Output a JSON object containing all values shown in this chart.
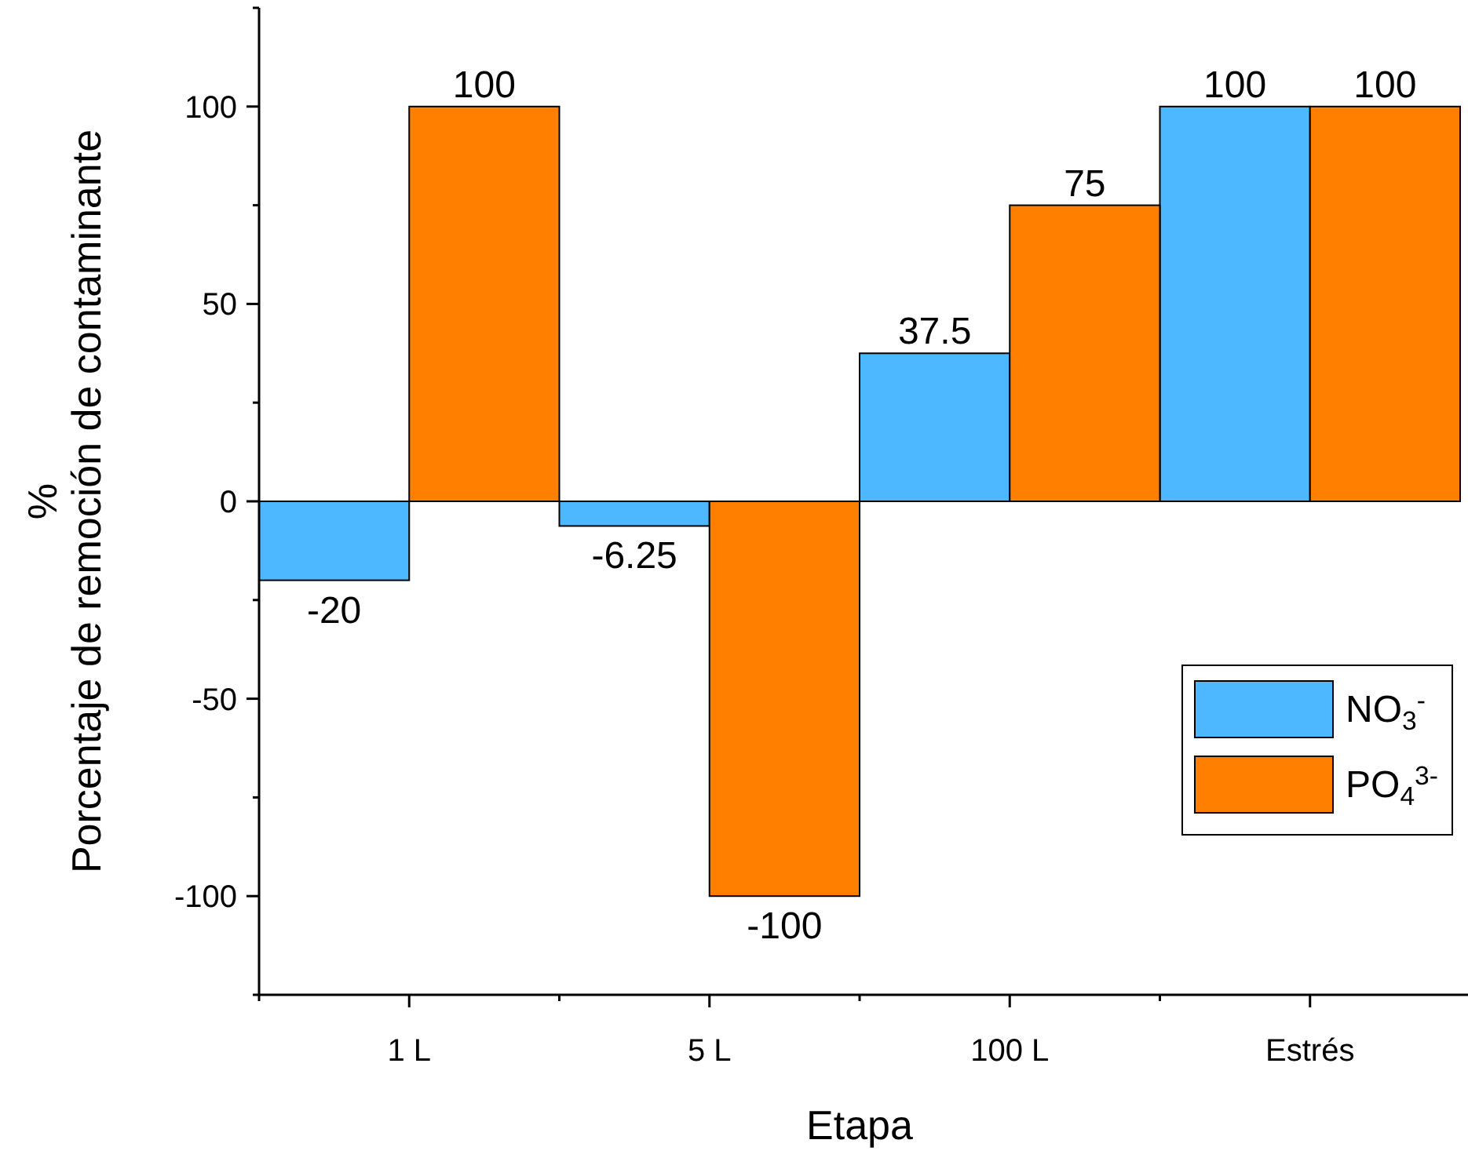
{
  "chart_data": {
    "type": "bar",
    "xlabel": "Etapa",
    "ylabel": "%\nPorcentaje de remoción de contaminante",
    "categories": [
      "1 L",
      "5 L",
      "100 L",
      "Estrés"
    ],
    "series": [
      {
        "name": "NO$_{3}$$^{-}$",
        "color": "#4db8ff",
        "values": [
          -20,
          -6.25,
          37.5,
          100
        ]
      },
      {
        "name": "PO$_{4}$$^{3-}$",
        "color": "#ff8000",
        "values": [
          100,
          -100,
          75,
          100
        ]
      }
    ],
    "ylim": [
      -125,
      125
    ],
    "yticks": [
      {
        "value": -125,
        "label": null
      },
      -100,
      {
        "value": -75,
        "label": null
      },
      -50,
      {
        "value": -25,
        "label": null
      },
      0,
      {
        "value": 25,
        "label": null
      },
      50,
      {
        "value": 75,
        "label": null
      },
      100,
      {
        "value": 125,
        "label": null
      }
    ],
    "data_labels": true,
    "legend": "bottom right",
    "grid": false
  }
}
